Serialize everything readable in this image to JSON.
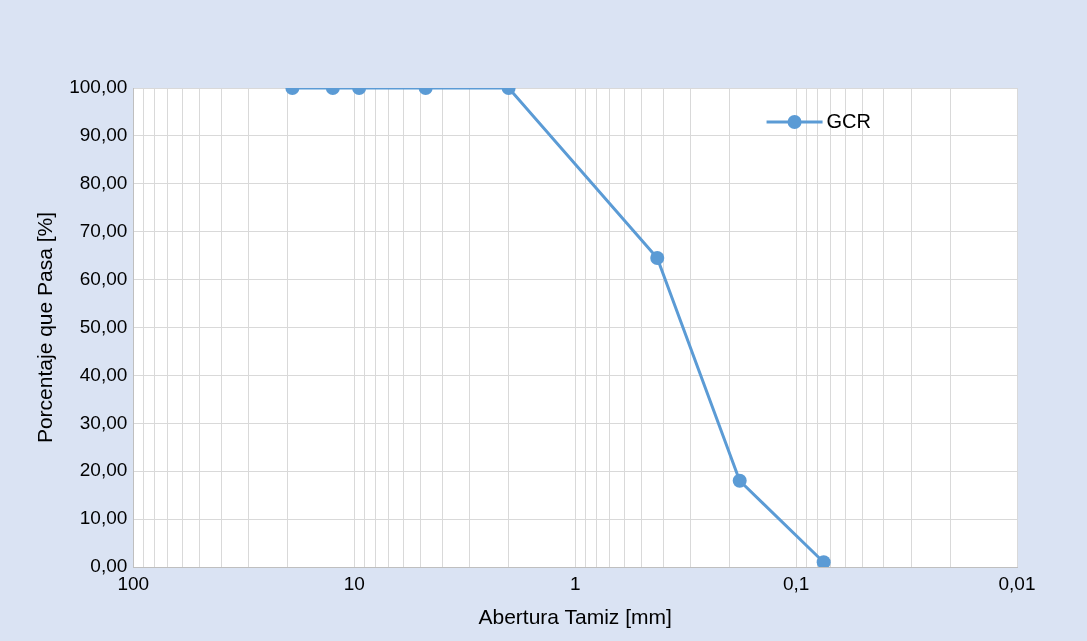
{
  "chart_data": {
    "type": "line",
    "xlabel": "Abertura Tamiz [mm]",
    "ylabel": "Porcentaje que Pasa [%]",
    "x": [
      19.05,
      12.5,
      9.5,
      4.75,
      2.0,
      0.425,
      0.18,
      0.075
    ],
    "series": [
      {
        "name": "GCR",
        "color": "#5b9bd5",
        "values": [
          100,
          100,
          100,
          100,
          100,
          64.5,
          18,
          1
        ]
      }
    ],
    "log": "x",
    "xlim": [
      100,
      0.01
    ],
    "xticks": [
      {
        "value": 100,
        "label": "100"
      },
      {
        "value": 90,
        "label": null
      },
      {
        "value": 80,
        "label": null
      },
      {
        "value": 70,
        "label": null
      },
      {
        "value": 60,
        "label": null
      },
      {
        "value": 50,
        "label": null
      },
      {
        "value": 40,
        "label": null
      },
      {
        "value": 30,
        "label": null
      },
      {
        "value": 20,
        "label": null
      },
      {
        "value": 10,
        "label": "10"
      },
      {
        "value": 9,
        "label": null
      },
      {
        "value": 8,
        "label": null
      },
      {
        "value": 7,
        "label": null
      },
      {
        "value": 6,
        "label": null
      },
      {
        "value": 5,
        "label": null
      },
      {
        "value": 4,
        "label": null
      },
      {
        "value": 3,
        "label": null
      },
      {
        "value": 2,
        "label": null
      },
      {
        "value": 1,
        "label": "1"
      },
      {
        "value": 0.9,
        "label": null
      },
      {
        "value": 0.8,
        "label": null
      },
      {
        "value": 0.7,
        "label": null
      },
      {
        "value": 0.6,
        "label": null
      },
      {
        "value": 0.5,
        "label": null
      },
      {
        "value": 0.4,
        "label": null
      },
      {
        "value": 0.3,
        "label": null
      },
      {
        "value": 0.2,
        "label": null
      },
      {
        "value": 0.1,
        "label": "0,1"
      },
      {
        "value": 0.09,
        "label": null
      },
      {
        "value": 0.08,
        "label": null
      },
      {
        "value": 0.07,
        "label": null
      },
      {
        "value": 0.06,
        "label": null
      },
      {
        "value": 0.05,
        "label": null
      },
      {
        "value": 0.04,
        "label": null
      },
      {
        "value": 0.03,
        "label": null
      },
      {
        "value": 0.02,
        "label": null
      },
      {
        "value": 0.01,
        "label": "0,01"
      }
    ],
    "ylim": [
      0,
      100
    ],
    "yticks": [
      {
        "value": 0,
        "label": "0,00"
      },
      {
        "value": 10,
        "label": "10,00"
      },
      {
        "value": 20,
        "label": "20,00"
      },
      {
        "value": 30,
        "label": "30,00"
      },
      {
        "value": 40,
        "label": "40,00"
      },
      {
        "value": 50,
        "label": "50,00"
      },
      {
        "value": 60,
        "label": "60,00"
      },
      {
        "value": 70,
        "label": "70,00"
      },
      {
        "value": 80,
        "label": "80,00"
      },
      {
        "value": 90,
        "label": "90,00"
      },
      {
        "value": 100,
        "label": "100,00"
      }
    ],
    "grid": true,
    "legend": "top right",
    "marker": "circle",
    "line_style": "solid"
  }
}
